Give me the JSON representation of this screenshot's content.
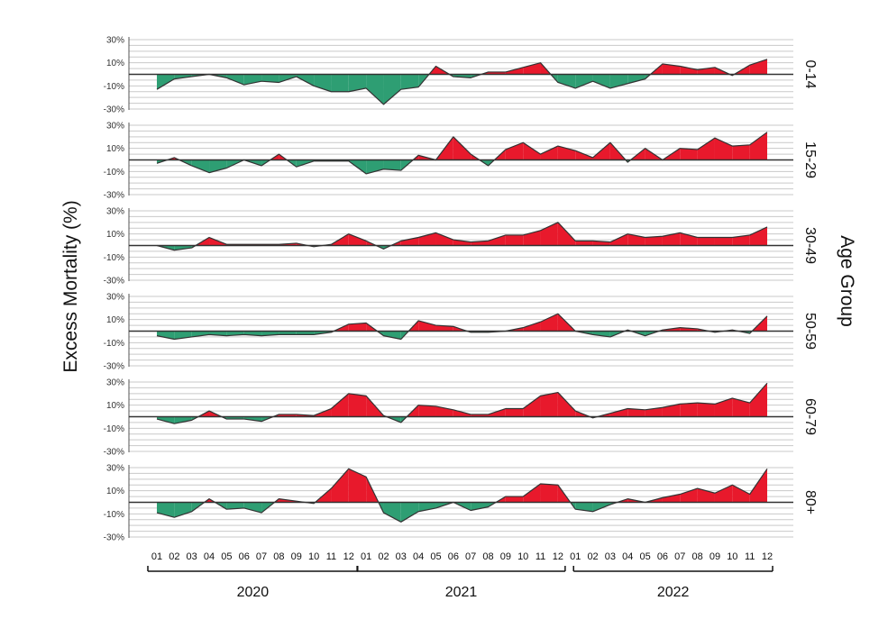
{
  "chart_data": {
    "type": "area",
    "ylabel": "Excess Mortality (%)",
    "facet_title": "Age Group",
    "ylim": [
      -30,
      30
    ],
    "yticks": [
      30,
      10,
      -10,
      -30
    ],
    "ytick_labels": [
      "30%",
      "10%",
      "-10%",
      "-30%"
    ],
    "x": [
      "2020-01",
      "2020-02",
      "2020-03",
      "2020-04",
      "2020-05",
      "2020-06",
      "2020-07",
      "2020-08",
      "2020-09",
      "2020-10",
      "2020-11",
      "2020-12",
      "2021-01",
      "2021-02",
      "2021-03",
      "2021-04",
      "2021-05",
      "2021-06",
      "2021-07",
      "2021-08",
      "2021-09",
      "2021-10",
      "2021-11",
      "2021-12",
      "2022-01",
      "2022-02",
      "2022-03",
      "2022-04",
      "2022-05",
      "2022-06",
      "2022-07",
      "2022-08",
      "2022-09",
      "2022-10",
      "2022-11",
      "2022-12"
    ],
    "month_labels": [
      "01",
      "02",
      "03",
      "04",
      "05",
      "06",
      "07",
      "08",
      "09",
      "10",
      "11",
      "12",
      "01",
      "02",
      "03",
      "04",
      "05",
      "06",
      "07",
      "08",
      "09",
      "10",
      "11",
      "12",
      "01",
      "02",
      "03",
      "04",
      "05",
      "06",
      "07",
      "08",
      "09",
      "10",
      "11",
      "12"
    ],
    "years": [
      "2020",
      "2021",
      "2022"
    ],
    "positive_color": "#e8192c",
    "negative_color": "#2e9e73",
    "series": [
      {
        "name": "0-14",
        "values": [
          -13,
          -4,
          -2,
          0,
          -3,
          -9,
          -6,
          -7,
          -2,
          -10,
          -15,
          -15,
          -12,
          -26,
          -13,
          -11,
          7,
          -2,
          -3,
          2,
          2,
          6,
          10,
          -7,
          -12,
          -6,
          -12,
          -8,
          -4,
          9,
          7,
          4,
          6,
          -1,
          8,
          13
        ]
      },
      {
        "name": "15-29",
        "values": [
          -3,
          2,
          -5,
          -11,
          -7,
          0,
          -5,
          5,
          -6,
          -1,
          -1,
          -1,
          -12,
          -8,
          -9,
          4,
          0,
          20,
          5,
          -5,
          9,
          15,
          5,
          12,
          8,
          2,
          15,
          -2,
          10,
          0,
          10,
          9,
          19,
          12,
          13,
          24
        ]
      },
      {
        "name": "30-49",
        "values": [
          0,
          -4,
          -2,
          7,
          1,
          1,
          1,
          1,
          2,
          -1,
          1,
          10,
          4,
          -3,
          4,
          7,
          11,
          5,
          3,
          4,
          9,
          9,
          13,
          20,
          4,
          4,
          3,
          10,
          7,
          8,
          11,
          7,
          7,
          7,
          9,
          16
        ]
      },
      {
        "name": "50-59",
        "values": [
          -4,
          -7,
          -5,
          -3,
          -4,
          -3,
          -4,
          -3,
          -3,
          -3,
          -1,
          6,
          7,
          -4,
          -7,
          9,
          5,
          4,
          -1,
          -1,
          0,
          3,
          8,
          15,
          0,
          -3,
          -5,
          1,
          -4,
          1,
          3,
          2,
          -1,
          1,
          -2,
          13
        ]
      },
      {
        "name": "60-79",
        "values": [
          -2,
          -6,
          -3,
          5,
          -2,
          -2,
          -4,
          2,
          2,
          1,
          7,
          20,
          18,
          1,
          -5,
          10,
          9,
          6,
          2,
          2,
          7,
          7,
          18,
          21,
          5,
          -1,
          3,
          7,
          6,
          8,
          11,
          12,
          11,
          16,
          12,
          29
        ]
      },
      {
        "name": "80+",
        "values": [
          -9,
          -13,
          -8,
          3,
          -6,
          -5,
          -9,
          3,
          1,
          -1,
          12,
          29,
          22,
          -9,
          -17,
          -8,
          -5,
          0,
          -7,
          -4,
          5,
          5,
          16,
          15,
          -6,
          -8,
          -2,
          3,
          0,
          4,
          7,
          12,
          8,
          15,
          7,
          29
        ]
      }
    ]
  }
}
